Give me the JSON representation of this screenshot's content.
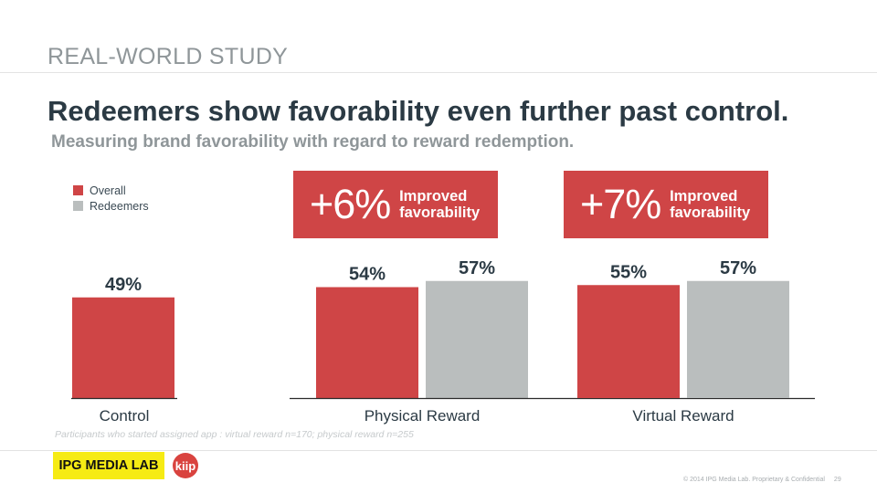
{
  "header": {
    "section": "REAL-WORLD STUDY",
    "title": "Redeemers show favorability even further past control.",
    "subtitle": "Measuring brand favorability with regard to reward redemption."
  },
  "callouts": [
    {
      "big": "+6%",
      "text": "Improved favorability"
    },
    {
      "big": "+7%",
      "text": "Improved favorability"
    }
  ],
  "footnote": "Participants who started assigned app : virtual reward n=170; physical reward n=255",
  "footer": {
    "brand": "IPG MEDIA LAB",
    "partner": "kiip",
    "copyright": "© 2014 IPG Media Lab. Proprietary & Confidential",
    "page": "29"
  },
  "colors": {
    "overall": "#cf4546",
    "redeemers": "#babebe",
    "text": "#2b3a44"
  },
  "chart_data": {
    "type": "bar",
    "title": "",
    "categories": [
      "Control",
      "Physical Reward",
      "Virtual Reward"
    ],
    "series": [
      {
        "name": "Overall",
        "values": [
          49,
          54,
          55
        ],
        "labels": [
          "49%",
          "54%",
          "55%"
        ]
      },
      {
        "name": "Redeemers",
        "values": [
          null,
          57,
          57
        ],
        "labels": [
          "",
          "57%",
          "57%"
        ]
      }
    ],
    "ylim": [
      0,
      100
    ],
    "legend": "top-left",
    "unit": "%"
  }
}
